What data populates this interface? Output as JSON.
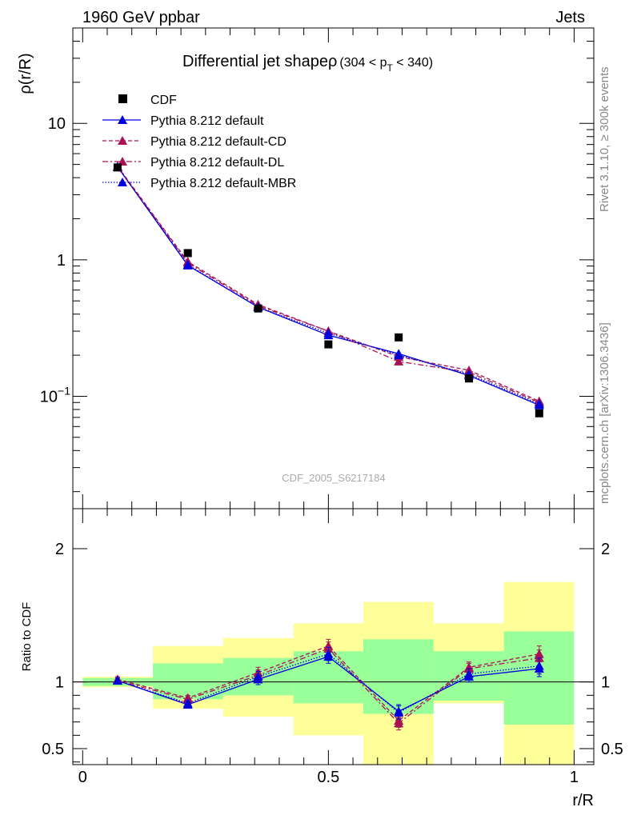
{
  "header": {
    "left": "1960 GeV ppbar",
    "right": "Jets"
  },
  "side": {
    "rivet": "Rivet 3.1.10, ≥ 300k events",
    "mcplots": "mcplots.cern.ch [arXiv:1306.3436]"
  },
  "chart_data": [
    {
      "type": "line",
      "title": "Differential jet shapeρ",
      "title_range": "(304 < p",
      "title_sub": "T",
      "title_end": " < 340)",
      "ylabel": "ρ(r/R)",
      "yscale": "log",
      "ylim": [
        0.015,
        50
      ],
      "y_ticks": [
        {
          "value": 10,
          "base": "10",
          "exp": ""
        },
        {
          "value": 1,
          "base": "1",
          "exp": ""
        },
        {
          "value": 0.1,
          "base": "10",
          "exp": "−1"
        }
      ],
      "watermark": "CDF_2005_S6217184",
      "x": [
        0.071,
        0.214,
        0.357,
        0.5,
        0.643,
        0.786,
        0.929
      ],
      "series": [
        {
          "name": "CDF",
          "kind": "data",
          "color": "#000000",
          "values": [
            4.75,
            1.12,
            0.44,
            0.24,
            0.27,
            0.135,
            0.075
          ]
        },
        {
          "name": "Pythia 8.212 default",
          "kind": "solid",
          "color": "#0000dd",
          "values": [
            4.8,
            0.91,
            0.45,
            0.28,
            0.205,
            0.142,
            0.086
          ],
          "err": [
            0.15,
            0.03,
            0.015,
            0.01,
            0.01,
            0.008,
            0.005
          ]
        },
        {
          "name": "Pythia 8.212 default-CD",
          "kind": "dashed",
          "color": "#aa1155",
          "values": [
            4.85,
            0.97,
            0.47,
            0.3,
            0.195,
            0.155,
            0.092
          ],
          "err": [
            0.15,
            0.03,
            0.015,
            0.012,
            0.012,
            0.01,
            0.006
          ]
        },
        {
          "name": "Pythia 8.212 default-DL",
          "kind": "dashdot",
          "color": "#aa1155",
          "values": [
            4.8,
            0.95,
            0.46,
            0.3,
            0.18,
            0.15,
            0.09
          ],
          "err": [
            0.15,
            0.03,
            0.015,
            0.012,
            0.012,
            0.01,
            0.006
          ]
        },
        {
          "name": "Pythia 8.212 default-MBR",
          "kind": "dotted",
          "color": "#0000dd",
          "values": [
            4.8,
            0.92,
            0.45,
            0.29,
            0.2,
            0.145,
            0.088
          ],
          "err": [
            0.15,
            0.03,
            0.015,
            0.01,
            0.01,
            0.008,
            0.005
          ]
        }
      ]
    },
    {
      "type": "line",
      "ylabel": "Ratio to CDF",
      "xlabel": "r/R",
      "ylim": [
        0.38,
        2.3
      ],
      "xlim": [
        -0.02,
        1.04
      ],
      "y_ticks": [
        {
          "value": 2,
          "label": "2"
        },
        {
          "value": 1,
          "label": "1"
        },
        {
          "value": 0.5,
          "label": "0.5"
        }
      ],
      "x_ticks": [
        {
          "value": 0,
          "label": "0"
        },
        {
          "value": 0.5,
          "label": "0.5"
        },
        {
          "value": 1,
          "label": "1"
        }
      ],
      "bands": {
        "edges": [
          0,
          0.143,
          0.286,
          0.429,
          0.571,
          0.714,
          0.857,
          1.0
        ],
        "green": [
          [
            0.97,
            1.03
          ],
          [
            0.87,
            1.14
          ],
          [
            0.9,
            1.18
          ],
          [
            0.84,
            1.23
          ],
          [
            0.76,
            1.32
          ],
          [
            0.86,
            1.23
          ],
          [
            0.68,
            1.38
          ]
        ],
        "yellow": [
          [
            0.96,
            1.04
          ],
          [
            0.8,
            1.27
          ],
          [
            0.74,
            1.33
          ],
          [
            0.6,
            1.44
          ],
          [
            0.3,
            1.6
          ],
          [
            0.84,
            1.44
          ],
          [
            0.3,
            1.75
          ]
        ]
      },
      "series": [
        {
          "name": "Pythia 8.212 default",
          "values": [
            1.01,
            0.83,
            1.02,
            1.19,
            0.78,
            1.04,
            1.1
          ],
          "err": [
            0.02,
            0.02,
            0.04,
            0.05,
            0.05,
            0.04,
            0.06
          ]
        },
        {
          "name": "Pythia 8.212 default-CD",
          "values": [
            1.02,
            0.88,
            1.07,
            1.27,
            0.71,
            1.11,
            1.21
          ],
          "err": [
            0.02,
            0.02,
            0.04,
            0.05,
            0.05,
            0.04,
            0.06
          ]
        },
        {
          "name": "Pythia 8.212 default-DL",
          "values": [
            1.01,
            0.87,
            1.05,
            1.25,
            0.69,
            1.1,
            1.18
          ],
          "err": [
            0.02,
            0.02,
            0.04,
            0.05,
            0.05,
            0.04,
            0.06
          ]
        },
        {
          "name": "Pythia 8.212 default-MBR",
          "values": [
            1.01,
            0.84,
            1.04,
            1.21,
            0.77,
            1.06,
            1.12
          ],
          "err": [
            0.02,
            0.02,
            0.04,
            0.05,
            0.05,
            0.04,
            0.06
          ]
        }
      ]
    }
  ]
}
